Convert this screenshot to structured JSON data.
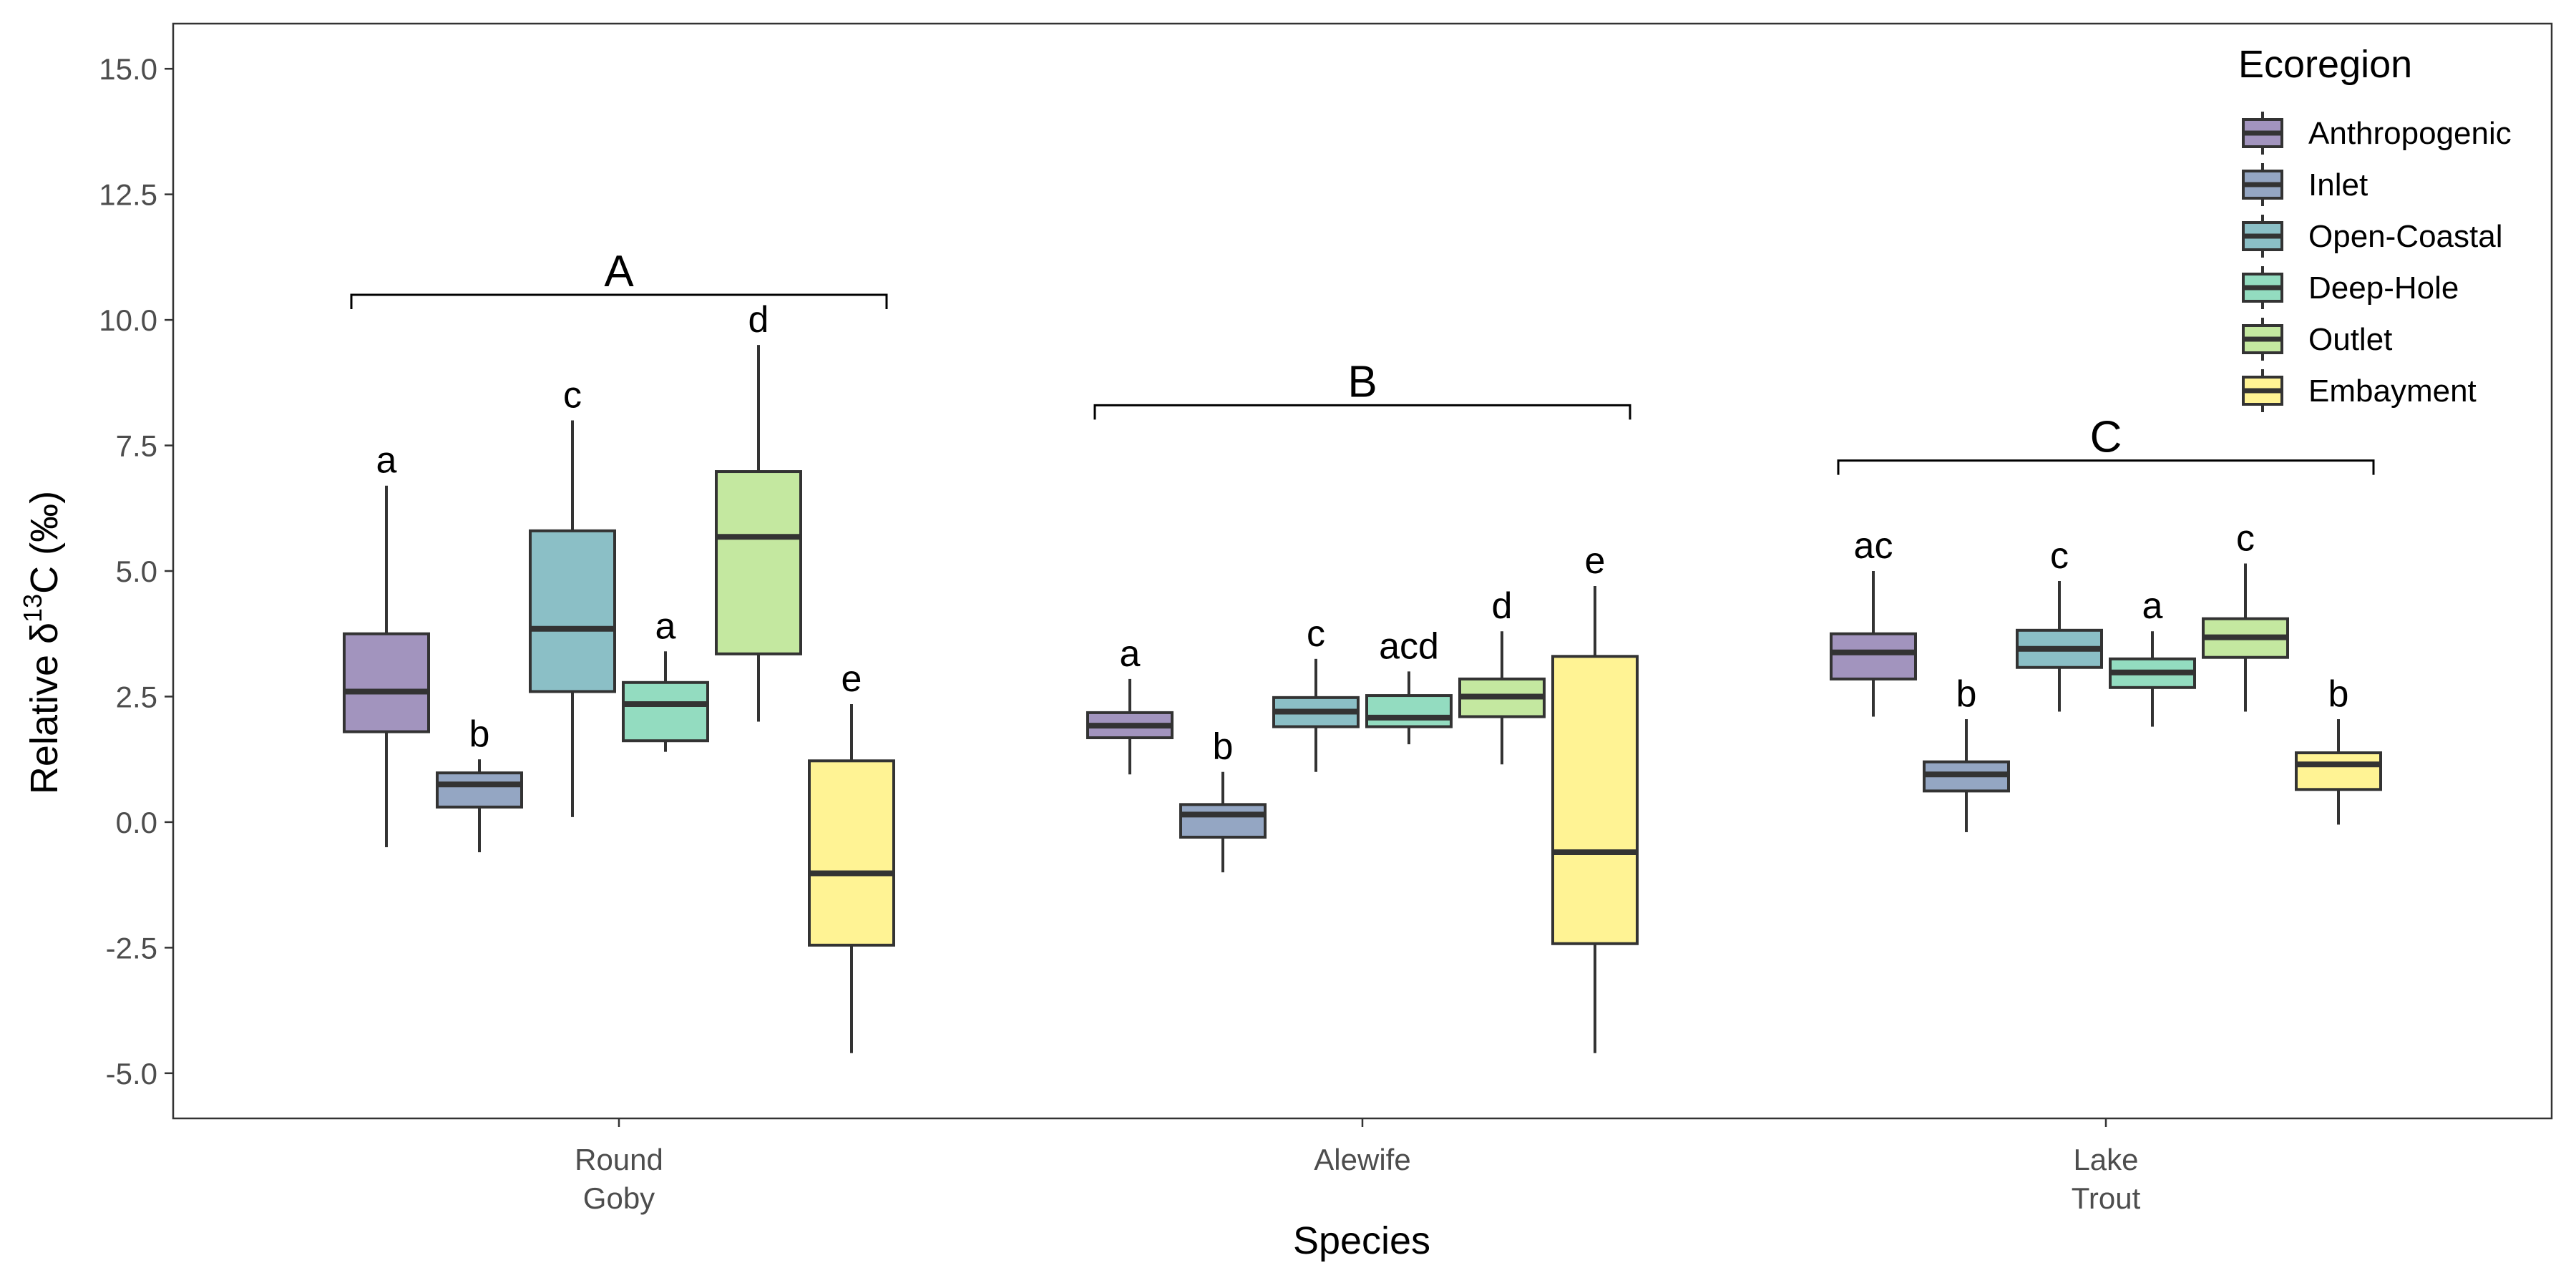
{
  "chart_data": {
    "type": "box",
    "xlabel": "Species",
    "ylabel_main": "Relative δ",
    "ylabel_sup": "13",
    "ylabel_rest": "C (‰)",
    "ylim": [
      -5.9,
      15.9
    ],
    "yticks": [
      -5.0,
      -2.5,
      0.0,
      2.5,
      5.0,
      7.5,
      10.0,
      12.5,
      15.0
    ],
    "ytick_labels": [
      "-5.0",
      "-2.5",
      "0.0",
      "2.5",
      "5.0",
      "7.5",
      "10.0",
      "12.5",
      "15.0"
    ],
    "grid": false,
    "legend_position": "top-right",
    "legend_title": "Ecoregion",
    "series": [
      {
        "name": "Anthropogenic",
        "color": "#a294be"
      },
      {
        "name": "Inlet",
        "color": "#94a6c3"
      },
      {
        "name": "Open-Coastal",
        "color": "#8bbfc6"
      },
      {
        "name": "Deep-Hole",
        "color": "#93dcc0"
      },
      {
        "name": "Outlet",
        "color": "#c4e8a0"
      },
      {
        "name": "Embayment",
        "color": "#fff394"
      }
    ],
    "categories": [
      {
        "label_lines": [
          "Round",
          "Goby"
        ],
        "group_letter": "A",
        "boxes": [
          {
            "min": -0.5,
            "q1": 1.8,
            "median": 2.6,
            "q3": 3.75,
            "max": 6.7,
            "letter": "a"
          },
          {
            "min": -0.6,
            "q1": 0.3,
            "median": 0.75,
            "q3": 0.98,
            "max": 1.25,
            "letter": "b"
          },
          {
            "min": 0.1,
            "q1": 2.6,
            "median": 3.85,
            "q3": 5.8,
            "max": 8.0,
            "letter": "c"
          },
          {
            "min": 1.4,
            "q1": 1.62,
            "median": 2.35,
            "q3": 2.78,
            "max": 3.4,
            "letter": "a"
          },
          {
            "min": 2.0,
            "q1": 3.35,
            "median": 5.68,
            "q3": 6.98,
            "max": 9.5,
            "letter": "d"
          },
          {
            "min": -4.6,
            "q1": -2.45,
            "median": -1.02,
            "q3": 1.22,
            "max": 2.35,
            "letter": "e"
          }
        ]
      },
      {
        "label_lines": [
          "Alewife"
        ],
        "group_letter": "B",
        "boxes": [
          {
            "min": 0.95,
            "q1": 1.68,
            "median": 1.92,
            "q3": 2.18,
            "max": 2.85,
            "letter": "a"
          },
          {
            "min": -1.0,
            "q1": -0.3,
            "median": 0.15,
            "q3": 0.35,
            "max": 1.0,
            "letter": "b"
          },
          {
            "min": 1.0,
            "q1": 1.9,
            "median": 2.2,
            "q3": 2.48,
            "max": 3.25,
            "letter": "c"
          },
          {
            "min": 1.55,
            "q1": 1.9,
            "median": 2.08,
            "q3": 2.52,
            "max": 3.0,
            "letter": "acd"
          },
          {
            "min": 1.15,
            "q1": 2.1,
            "median": 2.5,
            "q3": 2.85,
            "max": 3.8,
            "letter": "d"
          },
          {
            "min": -4.6,
            "q1": -2.42,
            "median": -0.6,
            "q3": 3.3,
            "max": 4.7,
            "letter": "e"
          }
        ]
      },
      {
        "label_lines": [
          "Lake",
          "Trout"
        ],
        "group_letter": "C",
        "boxes": [
          {
            "min": 2.1,
            "q1": 2.85,
            "median": 3.38,
            "q3": 3.75,
            "max": 5.0,
            "letter": "ac"
          },
          {
            "min": -0.2,
            "q1": 0.62,
            "median": 0.95,
            "q3": 1.2,
            "max": 2.05,
            "letter": "b"
          },
          {
            "min": 2.2,
            "q1": 3.08,
            "median": 3.45,
            "q3": 3.82,
            "max": 4.8,
            "letter": "c"
          },
          {
            "min": 1.9,
            "q1": 2.68,
            "median": 2.98,
            "q3": 3.25,
            "max": 3.8,
            "letter": "a"
          },
          {
            "min": 2.2,
            "q1": 3.28,
            "median": 3.68,
            "q3": 4.05,
            "max": 5.15,
            "letter": "c"
          },
          {
            "min": -0.05,
            "q1": 0.65,
            "median": 1.15,
            "q3": 1.38,
            "max": 2.05,
            "letter": "b"
          }
        ]
      }
    ],
    "group_brackets": [
      {
        "letter": "A",
        "y": 10.5
      },
      {
        "letter": "B",
        "y": 8.3
      },
      {
        "letter": "C",
        "y": 7.2
      }
    ]
  }
}
